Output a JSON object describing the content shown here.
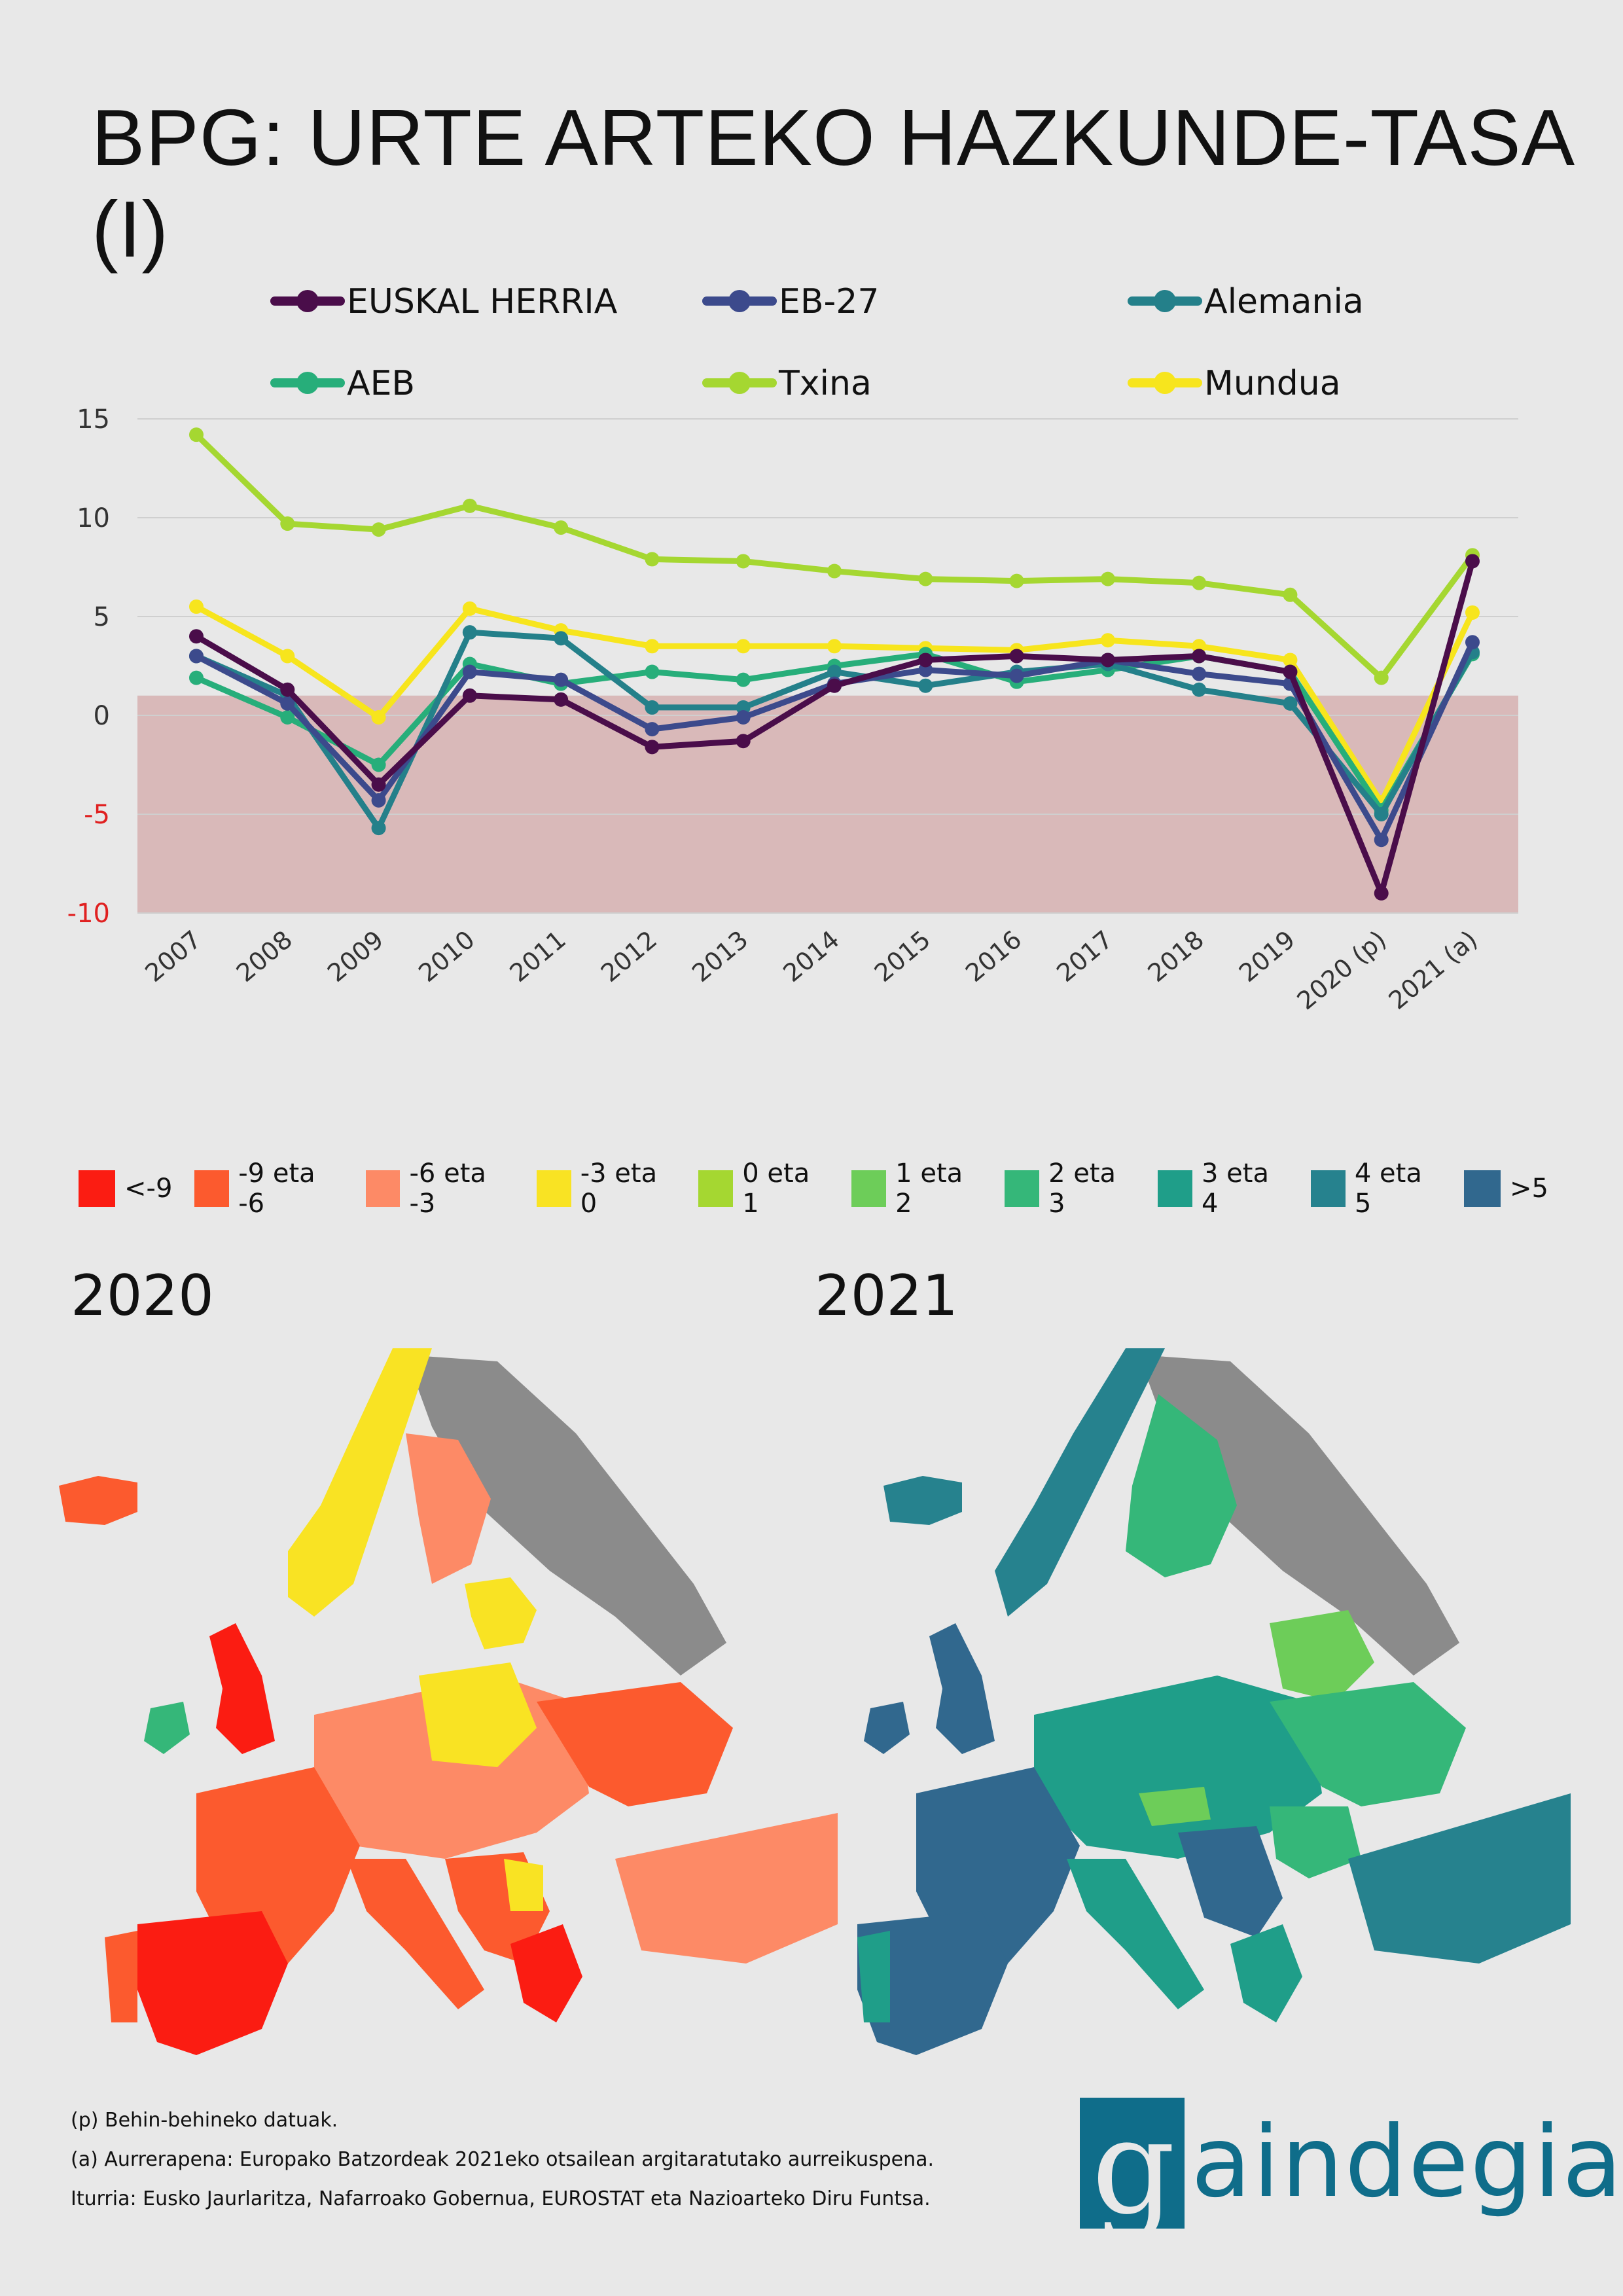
{
  "title": "BPG: URTE ARTEKO HAZKUNDE-TASA (I)",
  "chart_data": {
    "type": "line",
    "title": "BPG: URTE ARTEKO HAZKUNDE-TASA (I)",
    "categories": [
      "2007",
      "2008",
      "2009",
      "2010",
      "2011",
      "2012",
      "2013",
      "2014",
      "2015",
      "2016",
      "2017",
      "2018",
      "2019",
      "2020 (p)",
      "2021 (a)"
    ],
    "yticks": [
      15,
      10,
      5,
      0,
      -5,
      -10
    ],
    "ylim": [
      -10,
      15
    ],
    "negative_zone_upper": 1,
    "series": [
      {
        "name": "EUSKAL HERRIA",
        "color": "#4a0d4a",
        "values": [
          4.0,
          1.3,
          -3.5,
          1.0,
          0.8,
          -1.6,
          -1.3,
          1.5,
          2.8,
          3.0,
          2.8,
          3.0,
          2.2,
          -9.0,
          7.8
        ]
      },
      {
        "name": "EB-27",
        "color": "#3c4a8c",
        "values": [
          3.0,
          0.6,
          -4.3,
          2.2,
          1.8,
          -0.7,
          -0.1,
          1.6,
          2.3,
          2.0,
          2.8,
          2.1,
          1.6,
          -6.3,
          3.7
        ]
      },
      {
        "name": "Alemania",
        "color": "#24808a",
        "values": [
          3.0,
          1.0,
          -5.7,
          4.2,
          3.9,
          0.4,
          0.4,
          2.2,
          1.5,
          2.2,
          2.6,
          1.3,
          0.6,
          -5.0,
          3.2
        ]
      },
      {
        "name": "AEB",
        "color": "#27ae7a",
        "values": [
          1.9,
          -0.1,
          -2.5,
          2.6,
          1.6,
          2.2,
          1.8,
          2.5,
          3.1,
          1.7,
          2.3,
          3.0,
          2.2,
          -4.8,
          3.1
        ]
      },
      {
        "name": "Txina",
        "color": "#a5d731",
        "values": [
          14.2,
          9.7,
          9.4,
          10.6,
          9.5,
          7.9,
          7.8,
          7.3,
          6.9,
          6.8,
          6.9,
          6.7,
          6.1,
          1.9,
          8.1
        ]
      },
      {
        "name": "Mundua",
        "color": "#f7e51d",
        "values": [
          5.5,
          3.0,
          -0.1,
          5.4,
          4.3,
          3.5,
          3.5,
          3.5,
          3.4,
          3.3,
          3.8,
          3.5,
          2.8,
          -4.4,
          5.2
        ]
      }
    ]
  },
  "map_legend": [
    {
      "label": "<-9",
      "color": "#fb1c12"
    },
    {
      "label": "-9 eta -6",
      "color": "#fc5a2e"
    },
    {
      "label": "-6 eta -3",
      "color": "#fd8a66"
    },
    {
      "label": "-3 eta 0",
      "color": "#f9e323"
    },
    {
      "label": "0 eta 1",
      "color": "#a5d731"
    },
    {
      "label": "1 eta 2",
      "color": "#6dcd59"
    },
    {
      "label": "2 eta 3",
      "color": "#35b779"
    },
    {
      "label": "3 eta 4",
      "color": "#1f9e89"
    },
    {
      "label": "4 eta 5",
      "color": "#26828e"
    },
    {
      "label": ">5",
      "color": "#31688e"
    }
  ],
  "maps": {
    "left_year": "2020",
    "right_year": "2021"
  },
  "notes": {
    "n1": "(p) Behin-behineko datuak.",
    "n2": "(a) Aurrerapena: Europako Batzordeak 2021eko otsailean argitaratutako aurreikuspena.",
    "n3": "Iturria: Eusko Jaurlaritza, Nafarroako Gobernua, EUROSTAT eta Nazioarteko Diru Funtsa."
  },
  "logo": {
    "first_letter": "g",
    "rest": "aindegia"
  }
}
